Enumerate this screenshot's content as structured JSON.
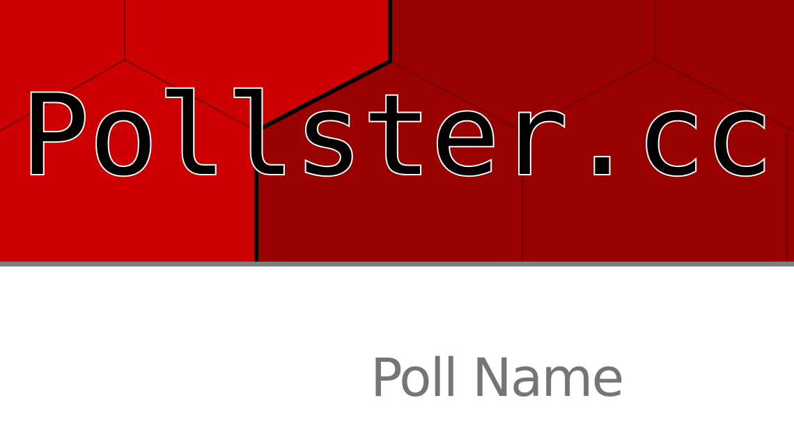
{
  "site": {
    "logo_text": "Pollster.cc"
  },
  "poll": {
    "name": "Poll Name"
  },
  "colors": {
    "banner_left": "#cc0000",
    "banner_right": "#990000",
    "divider_rule": "#7f7f7f",
    "logo_fill": "#000000",
    "logo_outline": "#ffffff",
    "poll_name_text": "#757575"
  }
}
